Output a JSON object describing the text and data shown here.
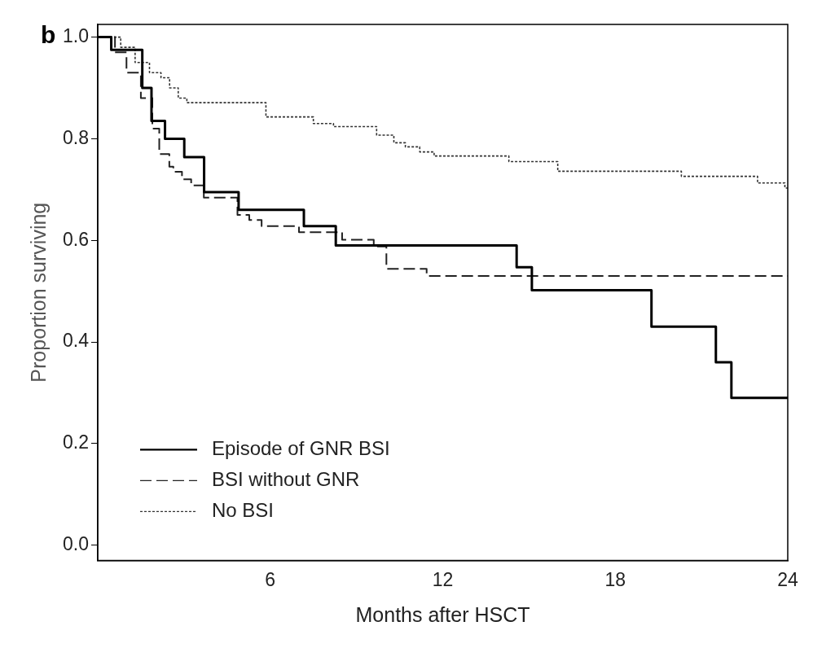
{
  "chart_data": {
    "type": "step",
    "xlabel": "Months after HSCT",
    "ylabel": "Proportion surviving",
    "annotations": [
      "b"
    ],
    "xlim": [
      0,
      24
    ],
    "xticks": [
      6,
      12,
      18,
      24
    ],
    "ylim": [
      -0.03,
      1.025
    ],
    "yticks": [
      {
        "value": 0,
        "label": "0.0"
      },
      {
        "value": 0.2,
        "label": "0.2"
      },
      {
        "value": 0.4,
        "label": "0.4"
      },
      {
        "value": 0.6,
        "label": "0.6"
      },
      {
        "value": 0.8,
        "label": "0.8"
      },
      {
        "value": 1,
        "label": "1.0"
      }
    ],
    "grid": false,
    "legend": "bottom left",
    "series": [
      {
        "name": "Episode of GNR BSI",
        "color": "#000000",
        "line_style": "solid",
        "x": [
          0,
          0.47,
          1.55,
          1.87,
          2.34,
          3.01,
          3.7,
          4.9,
          7.17,
          8.28,
          14.57,
          15.1,
          19.26,
          21.5,
          22.04,
          24
        ],
        "values": [
          1,
          0.975,
          0.9,
          0.835,
          0.8,
          0.764,
          0.695,
          0.66,
          0.628,
          0.59,
          0.547,
          0.502,
          0.43,
          0.36,
          0.29,
          0.29
        ]
      },
      {
        "name": "BSI without GNR",
        "color": "#222222",
        "line_style": "dashed",
        "x": [
          0,
          0.6,
          1.0,
          1.5,
          1.9,
          2.14,
          2.49,
          2.63,
          2.93,
          3.25,
          3.69,
          4.86,
          5.27,
          5.7,
          7.0,
          8.5,
          9.6,
          10.04,
          11.44,
          24
        ],
        "values": [
          1,
          0.97,
          0.93,
          0.88,
          0.82,
          0.77,
          0.745,
          0.735,
          0.72,
          0.708,
          0.684,
          0.65,
          0.64,
          0.628,
          0.616,
          0.601,
          0.588,
          0.544,
          0.53,
          0.53
        ]
      },
      {
        "name": "No BSI",
        "color": "#333333",
        "line_style": "dotted",
        "x": [
          0,
          0.8,
          1.3,
          1.8,
          2.2,
          2.5,
          2.8,
          3.1,
          5.85,
          7.5,
          8.2,
          9.7,
          10.3,
          10.7,
          11.2,
          11.7,
          14.3,
          16.0,
          20.3,
          22.95,
          23.9,
          24
        ],
        "values": [
          1,
          0.98,
          0.95,
          0.93,
          0.92,
          0.9,
          0.88,
          0.871,
          0.843,
          0.83,
          0.824,
          0.807,
          0.792,
          0.784,
          0.774,
          0.766,
          0.755,
          0.736,
          0.726,
          0.713,
          0.703,
          0.703
        ]
      }
    ]
  }
}
